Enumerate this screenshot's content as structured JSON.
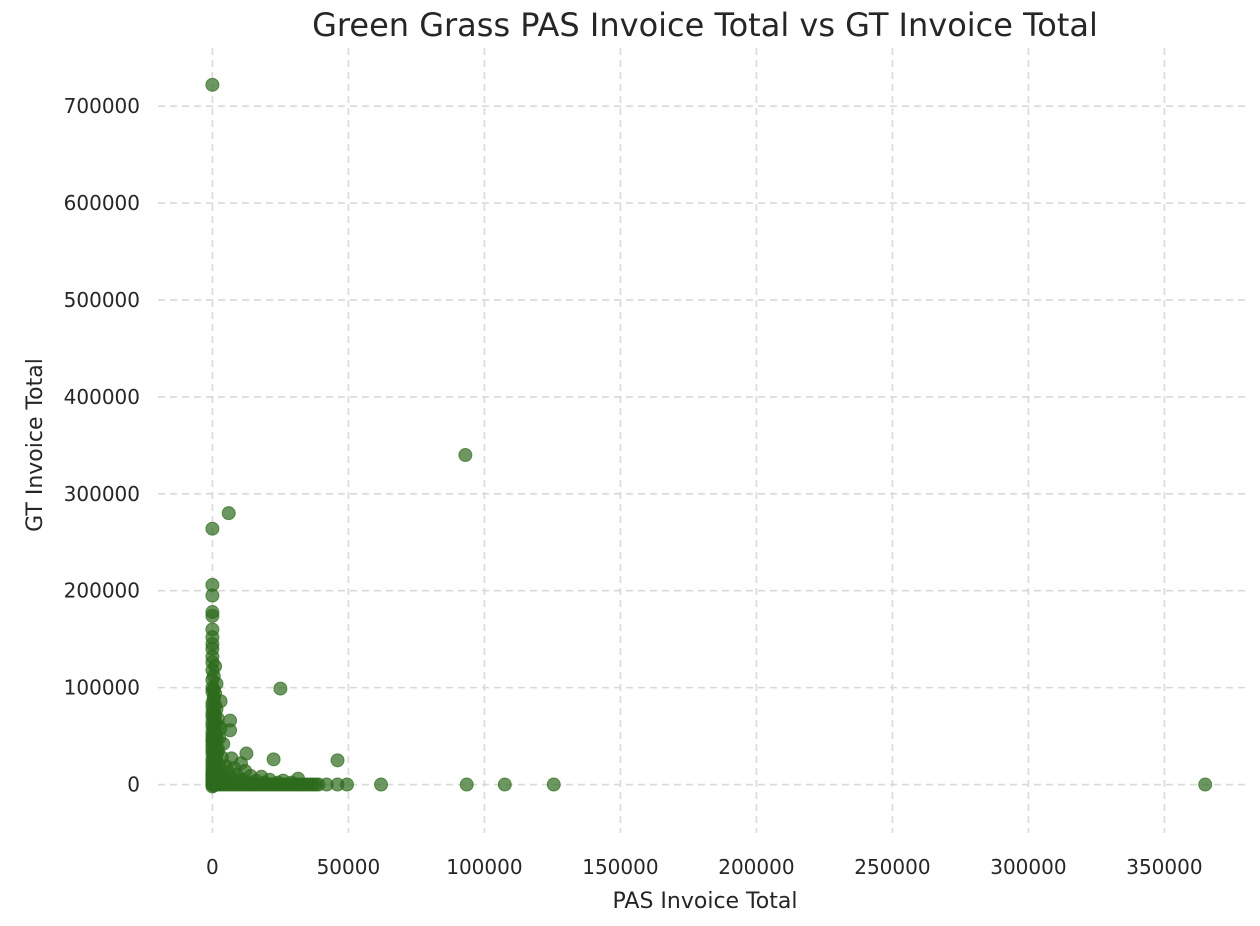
{
  "chart_data": {
    "type": "scatter",
    "title": "Green Grass PAS Invoice Total vs GT Invoice Total",
    "xlabel": "PAS Invoice Total",
    "ylabel": "GT Invoice Total",
    "xlim": [
      -20000,
      380000
    ],
    "ylim": [
      -50000,
      760000
    ],
    "xticks": [
      0,
      50000,
      100000,
      150000,
      200000,
      250000,
      300000,
      350000
    ],
    "yticks": [
      0,
      100000,
      200000,
      300000,
      400000,
      500000,
      600000,
      700000
    ],
    "xtick_labels": [
      "0",
      "50000",
      "100000",
      "150000",
      "200000",
      "250000",
      "300000",
      "350000"
    ],
    "ytick_labels": [
      "0",
      "100000",
      "200000",
      "300000",
      "400000",
      "500000",
      "600000",
      "700000"
    ],
    "grid": true,
    "marker_color": "#2e6b1c",
    "marker_opacity": 0.7,
    "series": [
      {
        "points": [
          [
            0,
            722000
          ],
          [
            93000,
            340000
          ],
          [
            6000,
            280000
          ],
          [
            0,
            264000
          ],
          [
            0,
            206000
          ],
          [
            0,
            195000
          ],
          [
            0,
            178000
          ],
          [
            0,
            174000
          ],
          [
            0,
            160000
          ],
          [
            0,
            152000
          ],
          [
            0,
            145000
          ],
          [
            0,
            140000
          ],
          [
            0,
            132000
          ],
          [
            0,
            126000
          ],
          [
            1000,
            122000
          ],
          [
            0,
            118000
          ],
          [
            500,
            112000
          ],
          [
            0,
            108000
          ],
          [
            1500,
            104000
          ],
          [
            25000,
            99000
          ],
          [
            0,
            100000
          ],
          [
            0,
            96000
          ],
          [
            1000,
            94000
          ],
          [
            500,
            90000
          ],
          [
            3000,
            86000
          ],
          [
            0,
            84000
          ],
          [
            0,
            80000
          ],
          [
            1500,
            78000
          ],
          [
            0,
            74000
          ],
          [
            0,
            70000
          ],
          [
            2000,
            68000
          ],
          [
            6500,
            66000
          ],
          [
            0,
            64000
          ],
          [
            1000,
            62000
          ],
          [
            0,
            60000
          ],
          [
            3000,
            58000
          ],
          [
            6500,
            56000
          ],
          [
            0,
            54000
          ],
          [
            1500,
            52000
          ],
          [
            0,
            50000
          ],
          [
            2500,
            48000
          ],
          [
            0,
            46000
          ],
          [
            0,
            44000
          ],
          [
            4000,
            42000
          ],
          [
            0,
            40000
          ],
          [
            1000,
            38000
          ],
          [
            0,
            36000
          ],
          [
            2000,
            34000
          ],
          [
            12500,
            32000
          ],
          [
            0,
            32000
          ],
          [
            500,
            30000
          ],
          [
            3500,
            28000
          ],
          [
            7000,
            27000
          ],
          [
            0,
            26000
          ],
          [
            22500,
            26000
          ],
          [
            46000,
            25000
          ],
          [
            1500,
            24000
          ],
          [
            0,
            22000
          ],
          [
            10500,
            22000
          ],
          [
            2500,
            20000
          ],
          [
            5000,
            19000
          ],
          [
            0,
            18000
          ],
          [
            8000,
            17000
          ],
          [
            1000,
            16000
          ],
          [
            3500,
            15000
          ],
          [
            0,
            14000
          ],
          [
            12000,
            14000
          ],
          [
            6000,
            13000
          ],
          [
            0,
            12000
          ],
          [
            2000,
            11000
          ],
          [
            9000,
            10000
          ],
          [
            0,
            10000
          ],
          [
            4000,
            9000
          ],
          [
            14000,
            9000
          ],
          [
            0,
            8000
          ],
          [
            18000,
            8000
          ],
          [
            1000,
            7000
          ],
          [
            7000,
            6500
          ],
          [
            31500,
            6000
          ],
          [
            0,
            6000
          ],
          [
            3000,
            5000
          ],
          [
            11000,
            5000
          ],
          [
            21000,
            5000
          ],
          [
            0,
            4000
          ],
          [
            5000,
            4000
          ],
          [
            16000,
            4000
          ],
          [
            26000,
            4000
          ],
          [
            1500,
            3000
          ],
          [
            9000,
            3000
          ],
          [
            0,
            2000
          ],
          [
            13000,
            2000
          ],
          [
            19000,
            2000
          ],
          [
            24000,
            2000
          ],
          [
            29000,
            2000
          ],
          [
            4000,
            1500
          ],
          [
            7500,
            1000
          ],
          [
            15000,
            1000
          ],
          [
            0,
            1000
          ],
          [
            2500,
            500
          ],
          [
            0,
            0
          ],
          [
            1000,
            0
          ],
          [
            2000,
            0
          ],
          [
            3000,
            0
          ],
          [
            4000,
            0
          ],
          [
            5000,
            0
          ],
          [
            6000,
            0
          ],
          [
            7000,
            0
          ],
          [
            8000,
            0
          ],
          [
            9000,
            0
          ],
          [
            10000,
            0
          ],
          [
            11000,
            0
          ],
          [
            12000,
            0
          ],
          [
            13000,
            0
          ],
          [
            14000,
            0
          ],
          [
            15000,
            0
          ],
          [
            16000,
            0
          ],
          [
            17000,
            0
          ],
          [
            18000,
            0
          ],
          [
            19000,
            0
          ],
          [
            20000,
            0
          ],
          [
            21000,
            0
          ],
          [
            22000,
            0
          ],
          [
            23000,
            0
          ],
          [
            24000,
            0
          ],
          [
            25000,
            0
          ],
          [
            26000,
            0
          ],
          [
            27000,
            0
          ],
          [
            28000,
            0
          ],
          [
            29000,
            0
          ],
          [
            30000,
            0
          ],
          [
            31000,
            0
          ],
          [
            32000,
            0
          ],
          [
            33000,
            0
          ],
          [
            34000,
            0
          ],
          [
            35000,
            0
          ],
          [
            36000,
            0
          ],
          [
            37000,
            0
          ],
          [
            38000,
            0
          ],
          [
            39000,
            0
          ],
          [
            42000,
            0
          ],
          [
            46000,
            0
          ],
          [
            49500,
            0
          ],
          [
            62000,
            0
          ],
          [
            93500,
            0
          ],
          [
            107500,
            0
          ],
          [
            125500,
            0
          ],
          [
            365000,
            0
          ],
          [
            0,
            -2000
          ],
          [
            500,
            -1000
          ],
          [
            1500,
            1500
          ],
          [
            2500,
            2500
          ],
          [
            3500,
            3500
          ],
          [
            500,
            5000
          ],
          [
            1000,
            9000
          ],
          [
            2000,
            12000
          ],
          [
            500,
            15000
          ],
          [
            1500,
            18000
          ],
          [
            500,
            21000
          ],
          [
            1000,
            25000
          ],
          [
            500,
            28000
          ],
          [
            1500,
            30000
          ],
          [
            500,
            34000
          ],
          [
            2000,
            37000
          ],
          [
            1000,
            41000
          ],
          [
            500,
            44000
          ],
          [
            1500,
            47000
          ],
          [
            500,
            51000
          ],
          [
            1000,
            55000
          ],
          [
            500,
            58000
          ],
          [
            2000,
            61000
          ],
          [
            1000,
            65000
          ],
          [
            500,
            69000
          ],
          [
            1000,
            72000
          ],
          [
            500,
            76000
          ],
          [
            1000,
            82000
          ],
          [
            500,
            88000
          ],
          [
            500,
            98000
          ]
        ]
      }
    ]
  }
}
